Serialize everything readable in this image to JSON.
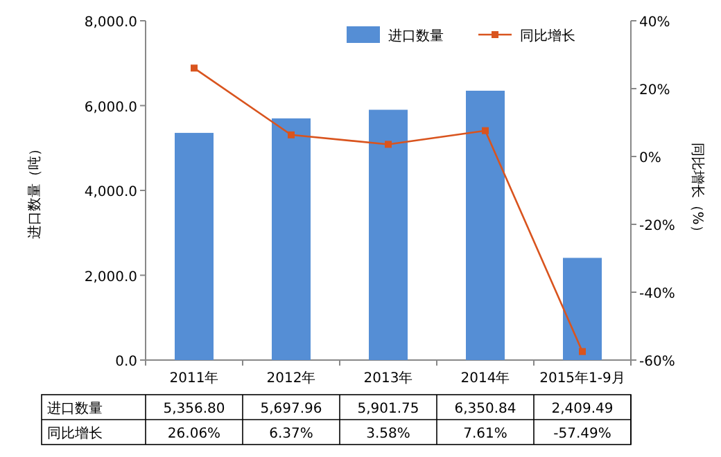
{
  "chart_data": {
    "type": "bar",
    "categories": [
      "2011年",
      "2012年",
      "2013年",
      "2014年",
      "2015年1-9月"
    ],
    "ylabel": "进口数量（吨）",
    "y2label": "同比增长（%）",
    "ylim": [
      0,
      8000
    ],
    "yticks": [
      {
        "value": 0,
        "label": "0.0"
      },
      {
        "value": 2000,
        "label": "2,000.0"
      },
      {
        "value": 4000,
        "label": "4,000.0"
      },
      {
        "value": 6000,
        "label": "6,000.0"
      },
      {
        "value": 8000,
        "label": "8,000.0"
      }
    ],
    "y2lim": [
      -60,
      40
    ],
    "y2ticks": [
      {
        "value": -60,
        "label": "-60%"
      },
      {
        "value": -40,
        "label": "-40%"
      },
      {
        "value": -20,
        "label": "-20%"
      },
      {
        "value": 0,
        "label": "0%"
      },
      {
        "value": 20,
        "label": "20%"
      },
      {
        "value": 40,
        "label": "40%"
      }
    ],
    "legend": "top right",
    "series": [
      {
        "name": "进口数量",
        "color": "#558ed5",
        "values": [
          5356.8,
          5697.96,
          5901.75,
          6350.84,
          2409.49
        ],
        "value_labels": [
          "5,356.80",
          "5,697.96",
          "5,901.75",
          "6,350.84",
          "2,409.49"
        ]
      },
      {
        "name": "同比增长",
        "type": "line",
        "axis": "y2",
        "color": "#d9541e",
        "marker": "square",
        "values": [
          26.06,
          6.37,
          3.58,
          7.61,
          -57.49
        ],
        "value_labels": [
          "26.06%",
          "6.37%",
          "3.58%",
          "7.61%",
          "-57.49%"
        ]
      }
    ]
  }
}
